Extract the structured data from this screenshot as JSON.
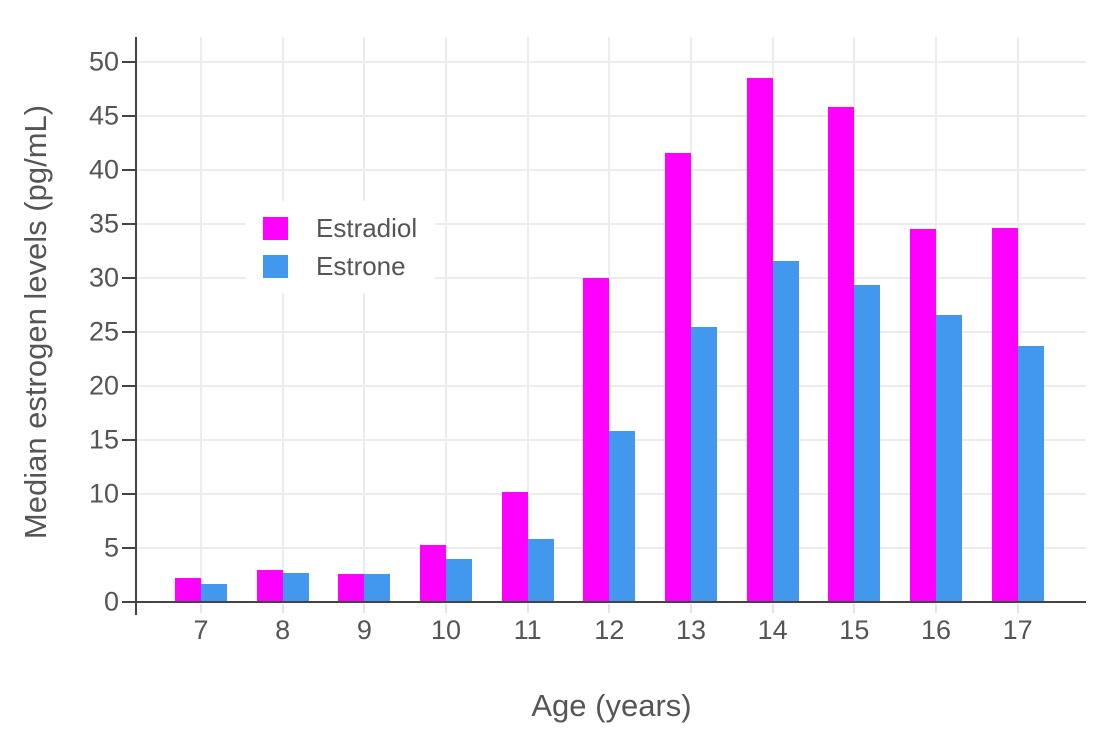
{
  "chart_data": {
    "type": "bar",
    "title": "",
    "xlabel": "Age (years)",
    "ylabel": "Median estrogen levels (pg/mL)",
    "categories": [
      "7",
      "8",
      "9",
      "10",
      "11",
      "12",
      "13",
      "14",
      "15",
      "16",
      "17"
    ],
    "series": [
      {
        "name": "Estradiol",
        "color": "#ff00ff",
        "values": [
          2.2,
          3.0,
          2.6,
          5.3,
          10.2,
          30.0,
          41.6,
          48.5,
          45.8,
          34.5,
          34.6
        ]
      },
      {
        "name": "Estrone",
        "color": "#4298ec",
        "values": [
          1.7,
          2.7,
          2.6,
          4.0,
          5.8,
          15.8,
          25.5,
          31.6,
          29.3,
          26.6,
          23.7
        ]
      }
    ],
    "ylim": [
      0,
      52.3
    ],
    "yticks": [
      0,
      5,
      10,
      15,
      20,
      25,
      30,
      35,
      40,
      45,
      50
    ],
    "grid": true,
    "legend_position": "inside-top-left",
    "colors": {
      "grid": "#ececec",
      "axis": "#444444",
      "text": "#555555",
      "background": "#ffffff"
    }
  }
}
